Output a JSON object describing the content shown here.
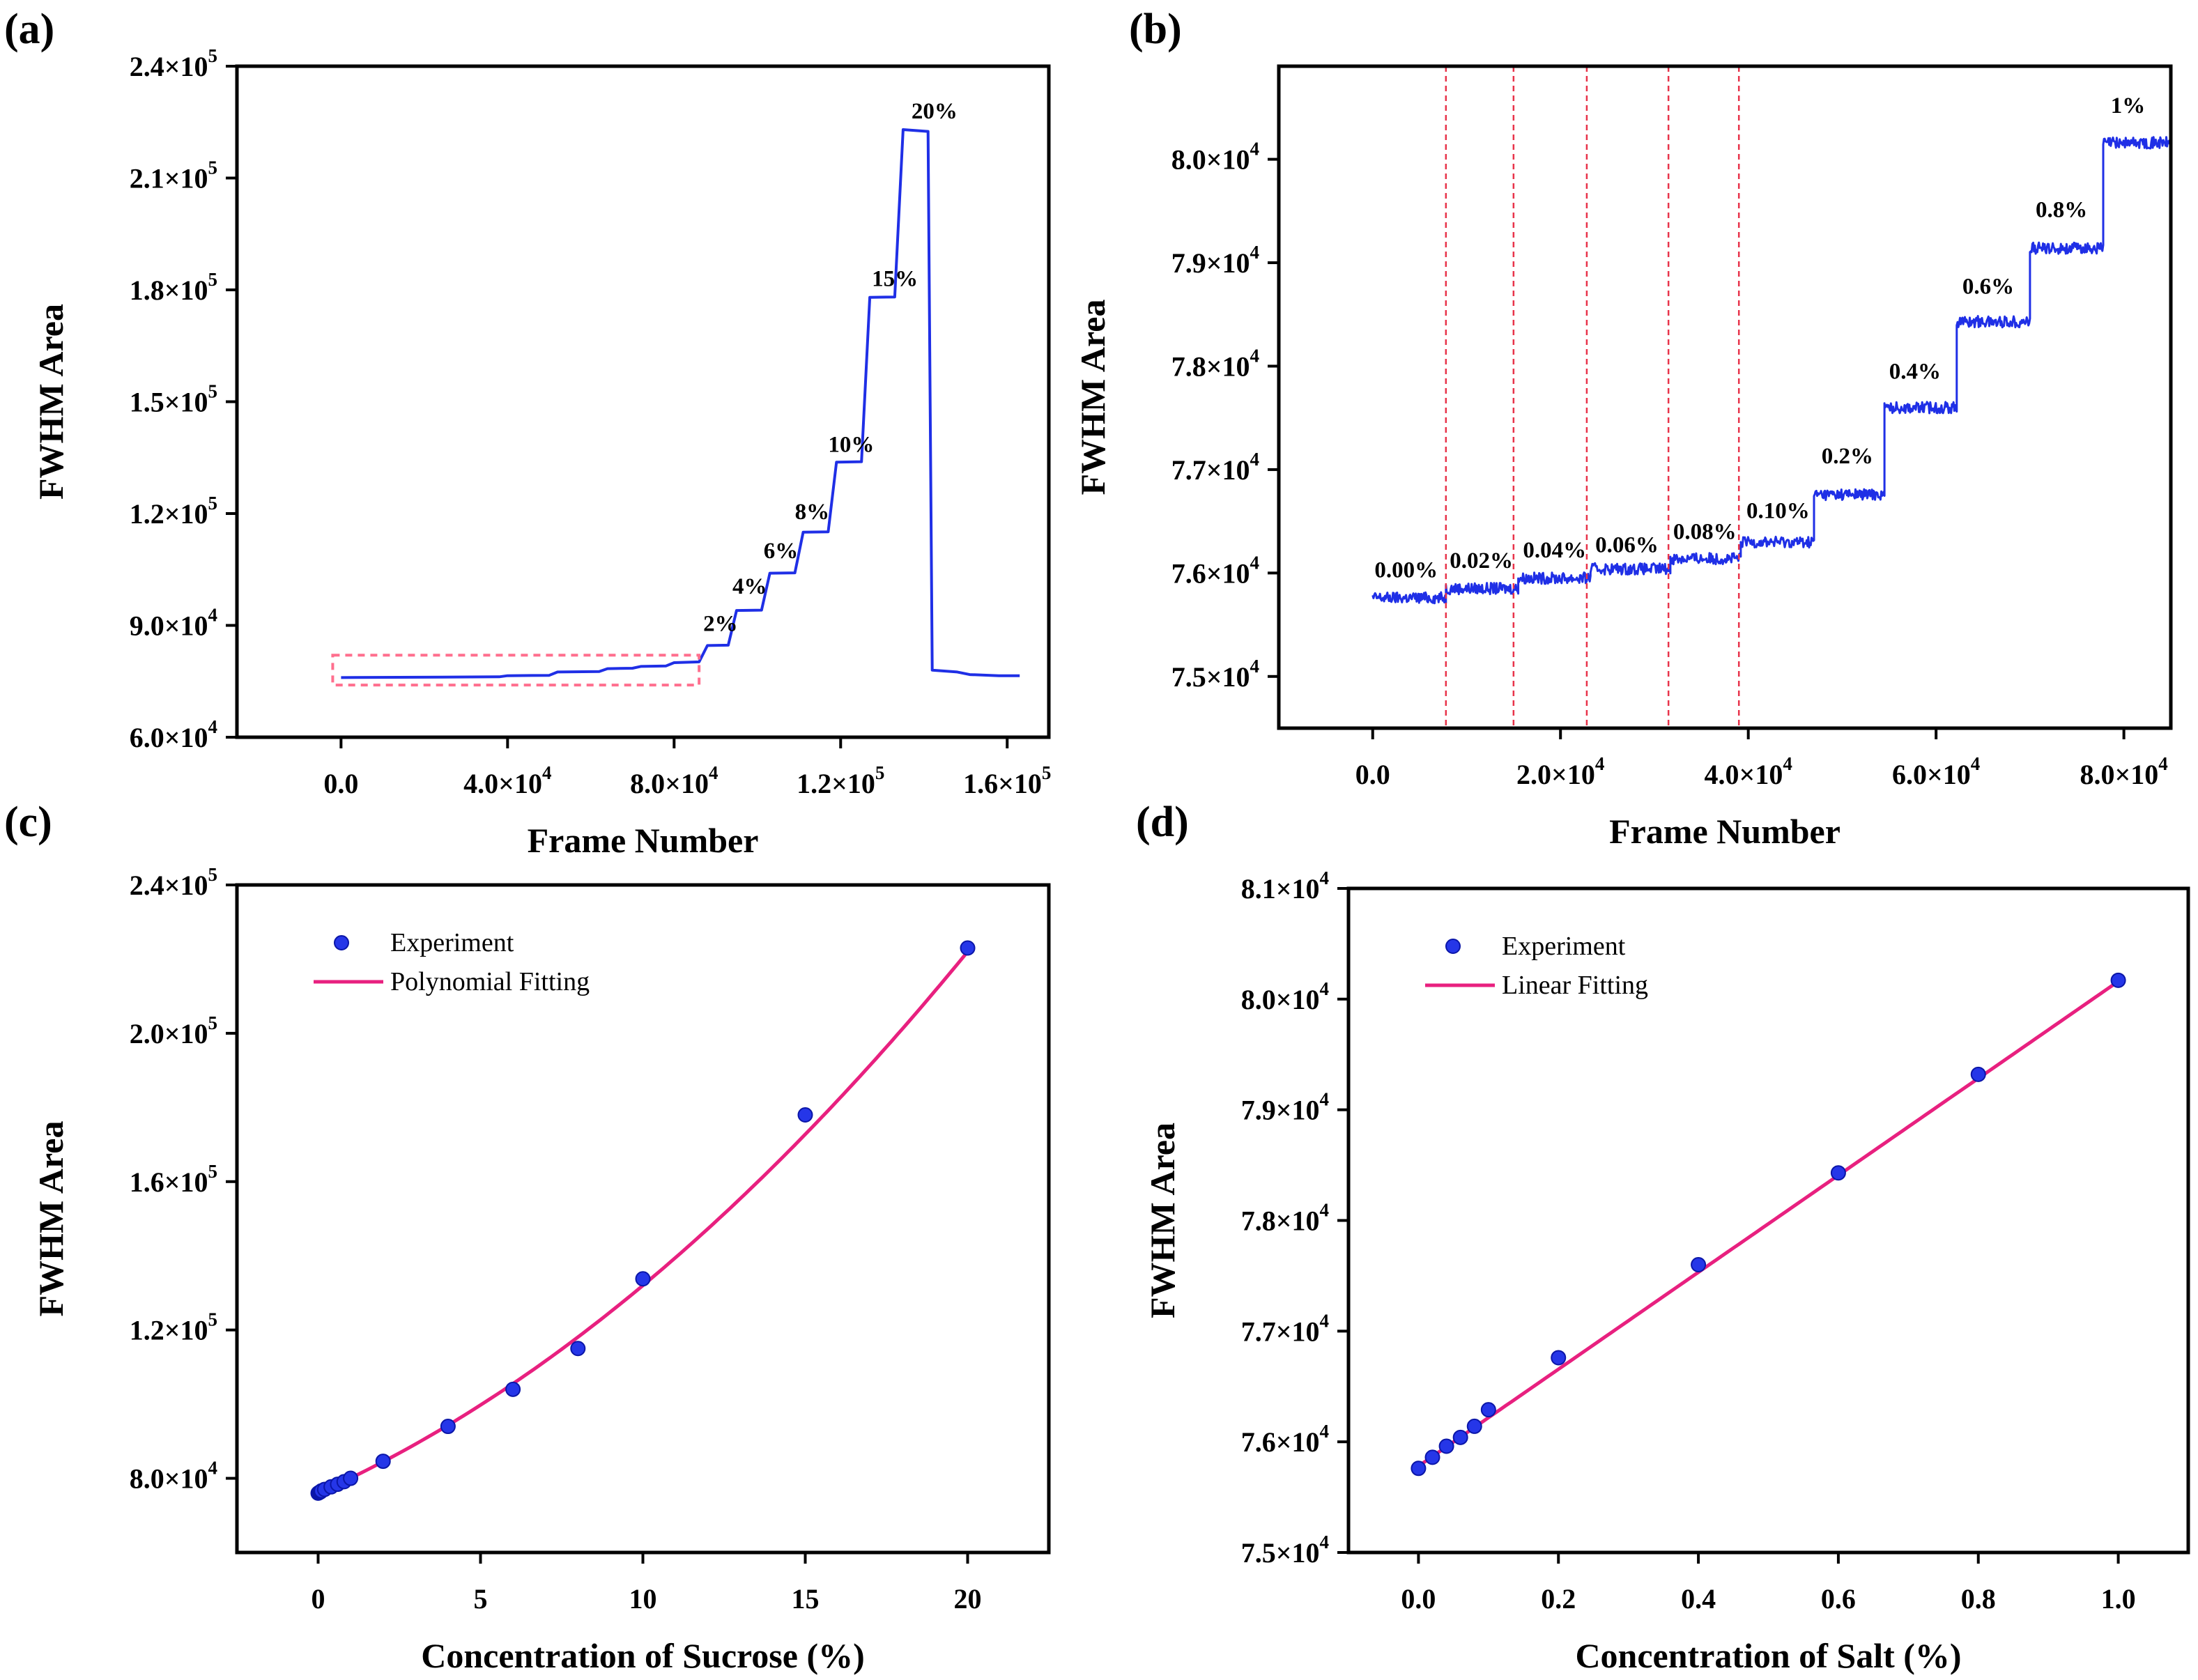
{
  "colors": {
    "trace": "#1f2fe6",
    "fit_line": "#e8207f",
    "marker_fill": "#2536e8",
    "marker_edge": "#0b16a8",
    "guide_dash": "#e8334a",
    "box_dash": "#ff6f8e"
  },
  "chart_data": [
    {
      "panel": "(a)",
      "type": "line",
      "xlabel": "Frame Number",
      "ylabel": "FWHM Area",
      "xlim": [
        -25000,
        170000
      ],
      "ylim": [
        60000,
        240000
      ],
      "xticks": [
        {
          "value": 0,
          "label": "0.0",
          "exp": ""
        },
        {
          "value": 40000,
          "label": "4.0×10",
          "exp": "4"
        },
        {
          "value": 80000,
          "label": "8.0×10",
          "exp": "4"
        },
        {
          "value": 120000,
          "label": "1.2×10",
          "exp": "5"
        },
        {
          "value": 160000,
          "label": "1.6×10",
          "exp": "5"
        }
      ],
      "yticks": [
        {
          "value": 60000,
          "label": "6.0×10",
          "exp": "4"
        },
        {
          "value": 90000,
          "label": "9.0×10",
          "exp": "4"
        },
        {
          "value": 120000,
          "label": "1.2×10",
          "exp": "5"
        },
        {
          "value": 150000,
          "label": "1.5×10",
          "exp": "5"
        },
        {
          "value": 180000,
          "label": "1.8×10",
          "exp": "5"
        },
        {
          "value": 210000,
          "label": "2.1×10",
          "exp": "5"
        },
        {
          "value": 240000,
          "label": "2.4×10",
          "exp": "5"
        }
      ],
      "series": [
        {
          "name": "FWHM Area trace",
          "x": [
            0,
            38000,
            40000,
            50000,
            52000,
            62000,
            64000,
            70000,
            72000,
            78000,
            80000,
            86000,
            88000,
            93000,
            95000,
            101000,
            103000,
            109000,
            111000,
            117000,
            119000,
            125000,
            127000,
            133000,
            135000,
            141000,
            142000,
            148000,
            151000,
            158000,
            163000
          ],
          "y": [
            76000,
            76200,
            76500,
            76600,
            77500,
            77600,
            78400,
            78500,
            79000,
            79100,
            80000,
            80200,
            84600,
            84700,
            94000,
            94100,
            104000,
            104100,
            115000,
            115100,
            133800,
            133900,
            178000,
            178100,
            223000,
            222500,
            78000,
            77500,
            76800,
            76500,
            76500
          ]
        }
      ],
      "annotations": [
        {
          "text": "2%",
          "x": 87000,
          "y": 88500
        },
        {
          "text": "4%",
          "x": 94000,
          "y": 98500
        },
        {
          "text": "6%",
          "x": 101500,
          "y": 108000
        },
        {
          "text": "8%",
          "x": 109000,
          "y": 118500
        },
        {
          "text": "10%",
          "x": 117000,
          "y": 136500
        },
        {
          "text": "15%",
          "x": 127500,
          "y": 181000
        },
        {
          "text": "20%",
          "x": 137000,
          "y": 226000
        }
      ],
      "highlight_box": {
        "x": [
          -2000,
          86000
        ],
        "y": [
          74000,
          82000
        ]
      }
    },
    {
      "panel": "(b)",
      "type": "line",
      "xlabel": "Frame Number",
      "ylabel": "FWHM Area",
      "xlim": [
        -10000,
        85000
      ],
      "ylim": [
        74500,
        80900
      ],
      "xticks": [
        {
          "value": 0,
          "label": "0.0",
          "exp": ""
        },
        {
          "value": 20000,
          "label": "2.0×10",
          "exp": "4"
        },
        {
          "value": 40000,
          "label": "4.0×10",
          "exp": "4"
        },
        {
          "value": 60000,
          "label": "6.0×10",
          "exp": "4"
        },
        {
          "value": 80000,
          "label": "8.0×10",
          "exp": "4"
        }
      ],
      "yticks": [
        {
          "value": 75000,
          "label": "7.5×10",
          "exp": "4"
        },
        {
          "value": 76000,
          "label": "7.6×10",
          "exp": "4"
        },
        {
          "value": 77000,
          "label": "7.7×10",
          "exp": "4"
        },
        {
          "value": 78000,
          "label": "7.8×10",
          "exp": "4"
        },
        {
          "value": 79000,
          "label": "7.9×10",
          "exp": "4"
        },
        {
          "value": 80000,
          "label": "8.0×10",
          "exp": "4"
        }
      ],
      "steps": [
        {
          "x0": 0,
          "x1": 7800,
          "y": 75760
        },
        {
          "x0": 7800,
          "x1": 15500,
          "y": 75850
        },
        {
          "x0": 15500,
          "x1": 23200,
          "y": 75950
        },
        {
          "x0": 23200,
          "x1": 31700,
          "y": 76040
        },
        {
          "x0": 31700,
          "x1": 39200,
          "y": 76140
        },
        {
          "x0": 39200,
          "x1": 47000,
          "y": 76300
        },
        {
          "x0": 47000,
          "x1": 54500,
          "y": 76760
        },
        {
          "x0": 54500,
          "x1": 62200,
          "y": 77600
        },
        {
          "x0": 62200,
          "x1": 70000,
          "y": 78430
        },
        {
          "x0": 70000,
          "x1": 77800,
          "y": 79140
        },
        {
          "x0": 77800,
          "x1": 85000,
          "y": 80160
        }
      ],
      "guide_lines_x": [
        7800,
        15000,
        22800,
        31500,
        39000
      ],
      "annotations": [
        {
          "text": "0.00%",
          "x": 200,
          "y": 75960
        },
        {
          "text": "0.02%",
          "x": 8200,
          "y": 76050
        },
        {
          "text": "0.04%",
          "x": 16000,
          "y": 76150
        },
        {
          "text": "0.06%",
          "x": 23700,
          "y": 76200
        },
        {
          "text": "0.08%",
          "x": 32000,
          "y": 76330
        },
        {
          "text": "0.10%",
          "x": 39800,
          "y": 76530
        },
        {
          "text": "0.2%",
          "x": 47800,
          "y": 77060
        },
        {
          "text": "0.4%",
          "x": 55000,
          "y": 77880
        },
        {
          "text": "0.6%",
          "x": 62800,
          "y": 78700
        },
        {
          "text": "0.8%",
          "x": 70600,
          "y": 79440
        },
        {
          "text": "1%",
          "x": 78600,
          "y": 80450
        }
      ]
    },
    {
      "panel": "(c)",
      "type": "scatter",
      "xlabel": "Concentration of Sucrose (%)",
      "ylabel": "FWHM Area",
      "xlim": [
        -2.5,
        22.5
      ],
      "ylim": [
        60000,
        240000
      ],
      "xticks": [
        {
          "value": 0,
          "label": "0",
          "exp": ""
        },
        {
          "value": 5,
          "label": "5",
          "exp": ""
        },
        {
          "value": 10,
          "label": "10",
          "exp": ""
        },
        {
          "value": 15,
          "label": "15",
          "exp": ""
        },
        {
          "value": 20,
          "label": "20",
          "exp": ""
        }
      ],
      "yticks": [
        {
          "value": 80000,
          "label": "8.0×10",
          "exp": "4"
        },
        {
          "value": 120000,
          "label": "1.2×10",
          "exp": "5"
        },
        {
          "value": 160000,
          "label": "1.6×10",
          "exp": "5"
        },
        {
          "value": 200000,
          "label": "2.0×10",
          "exp": "5"
        },
        {
          "value": 240000,
          "label": "2.4×10",
          "exp": "5"
        }
      ],
      "series": [
        {
          "name": "Experiment",
          "kind": "scatter",
          "x": [
            0,
            0.02,
            0.04,
            0.06,
            0.08,
            0.1,
            0.2,
            0.4,
            0.6,
            0.8,
            1,
            2,
            4,
            6,
            8,
            10,
            15,
            20
          ],
          "y": [
            76000,
            76100,
            76200,
            76300,
            76400,
            76600,
            77000,
            77700,
            78400,
            79100,
            80000,
            84600,
            94000,
            104000,
            115000,
            133800,
            178000,
            223000
          ]
        },
        {
          "name": "Polynomial Fitting",
          "kind": "line",
          "coefficients": [
            76000,
            3900,
            170
          ],
          "x_range": [
            0,
            20
          ]
        }
      ],
      "legend": [
        "Experiment",
        "Polynomial Fitting"
      ],
      "legend_position": "top-left"
    },
    {
      "panel": "(d)",
      "type": "scatter",
      "xlabel": "Concentration of Salt (%)",
      "ylabel": "FWHM Area",
      "xlim": [
        -0.1,
        1.1
      ],
      "ylim": [
        75000,
        81000
      ],
      "xticks": [
        {
          "value": 0,
          "label": "0.0",
          "exp": ""
        },
        {
          "value": 0.2,
          "label": "0.2",
          "exp": ""
        },
        {
          "value": 0.4,
          "label": "0.4",
          "exp": ""
        },
        {
          "value": 0.6,
          "label": "0.6",
          "exp": ""
        },
        {
          "value": 0.8,
          "label": "0.8",
          "exp": ""
        },
        {
          "value": 1.0,
          "label": "1.0",
          "exp": ""
        }
      ],
      "yticks": [
        {
          "value": 75000,
          "label": "7.5×10",
          "exp": "4"
        },
        {
          "value": 76000,
          "label": "7.6×10",
          "exp": "4"
        },
        {
          "value": 77000,
          "label": "7.7×10",
          "exp": "4"
        },
        {
          "value": 78000,
          "label": "7.8×10",
          "exp": "4"
        },
        {
          "value": 79000,
          "label": "7.9×10",
          "exp": "4"
        },
        {
          "value": 80000,
          "label": "8.0×10",
          "exp": "4"
        },
        {
          "value": 81000,
          "label": "8.1×10",
          "exp": "4"
        }
      ],
      "series": [
        {
          "name": "Experiment",
          "kind": "scatter",
          "x": [
            0,
            0.02,
            0.04,
            0.06,
            0.08,
            0.1,
            0.2,
            0.4,
            0.6,
            0.8,
            1.0
          ],
          "y": [
            75760,
            75860,
            75960,
            76040,
            76140,
            76290,
            76760,
            77600,
            78430,
            79320,
            80170
          ]
        },
        {
          "name": "Linear Fitting",
          "kind": "line",
          "coefficients": [
            75780,
            4380
          ],
          "x_range": [
            0,
            1
          ]
        }
      ],
      "legend": [
        "Experiment",
        "Linear Fitting"
      ],
      "legend_position": "top-left"
    }
  ]
}
